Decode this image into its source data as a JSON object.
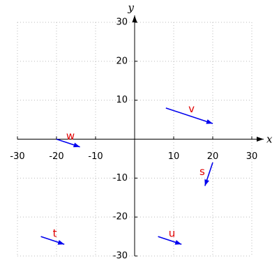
{
  "chart_data": {
    "type": "vector",
    "xlabel": "x",
    "ylabel": "y",
    "xlim": [
      -30,
      30
    ],
    "ylim": [
      -30,
      30
    ],
    "xticks": [
      -30,
      -20,
      -10,
      10,
      20,
      30
    ],
    "yticks": [
      -30,
      -20,
      -10,
      10,
      20,
      30
    ],
    "grid": true,
    "color": "#0000ee",
    "label_color": "#e00000",
    "vectors": [
      {
        "name": "v",
        "start": [
          8,
          8
        ],
        "end": [
          20,
          4
        ]
      },
      {
        "name": "w",
        "start": [
          -20,
          0
        ],
        "end": [
          -14,
          -2
        ]
      },
      {
        "name": "s",
        "start": [
          20,
          -6
        ],
        "end": [
          18,
          -12
        ]
      },
      {
        "name": "t",
        "start": [
          -24,
          -25
        ],
        "end": [
          -18,
          -27
        ]
      },
      {
        "name": "u",
        "start": [
          6,
          -25
        ],
        "end": [
          12,
          -27
        ]
      }
    ]
  }
}
